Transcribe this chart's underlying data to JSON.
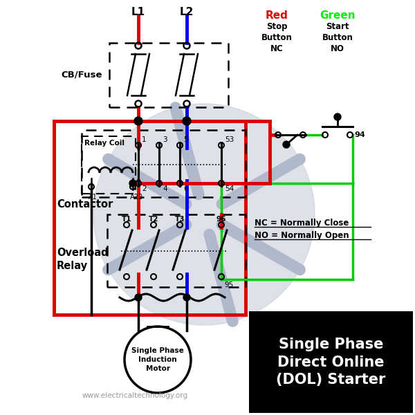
{
  "title": "Single Phase\nDirect Online\n(DOL) Starter",
  "website": "www.electricaltechnology.org",
  "bg_color": "#ffffff",
  "L1_color": "#dd0000",
  "L2_color": "#0000ee",
  "green_color": "#00cc00",
  "black_color": "#000000",
  "gray_color": "#c8cdd8",
  "red_label": "Red",
  "green_label": "Green",
  "stop_label": "Stop\nButton\nNC",
  "start_label": "Start\nButton\nNO",
  "cb_label": "CB/Fuse",
  "contactor_label": "Contactor",
  "relay_coil_label": "Relay Coil",
  "overload_label": "Overload\nRelay",
  "motor_label": "Single Phase\nInduction\nMotor",
  "nc_label": "NC = Normally Close",
  "no_label": "NO = Normally Open",
  "L1_label": "L1",
  "L2_label": "L2"
}
